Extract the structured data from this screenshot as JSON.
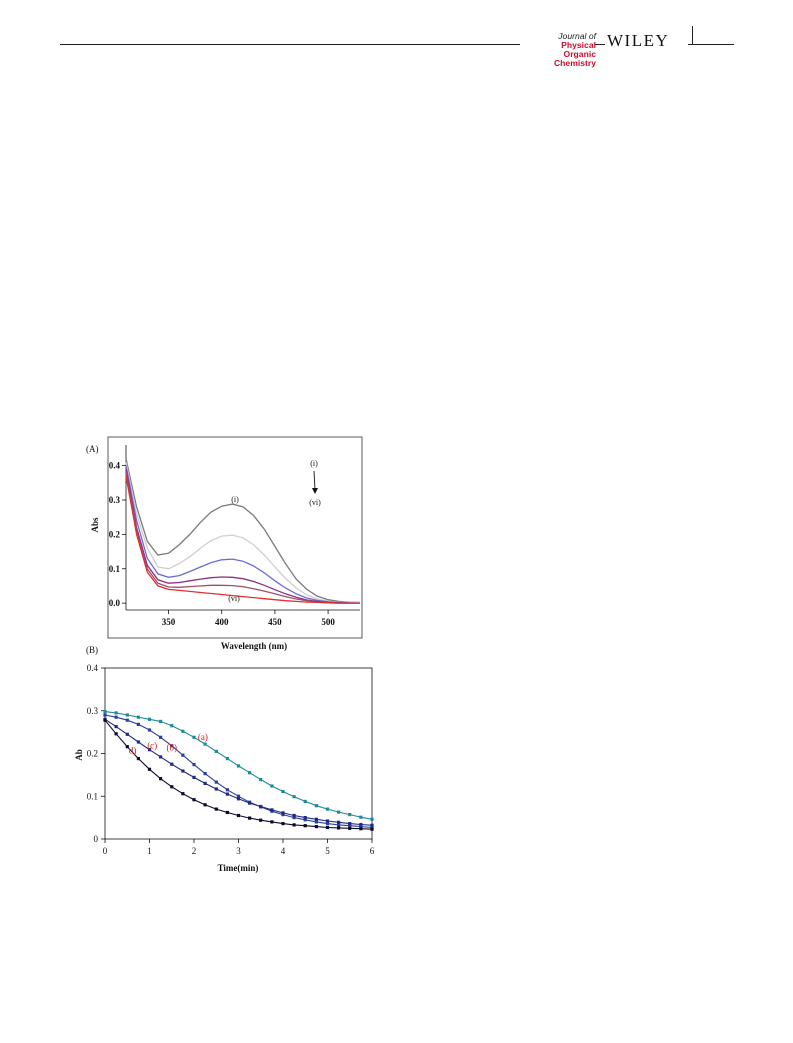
{
  "header": {
    "journal_line1_prefix": "Journal of",
    "journal_line1_emph": "Physical",
    "journal_line2": "Organic Chemistry",
    "publisher": "WILEY"
  },
  "figure": {
    "panel_a_label": "(A)",
    "panel_b_label": "(B)"
  },
  "chart_data": [
    {
      "type": "line",
      "panel": "(A)",
      "xlabel": "Wavelength (nm)",
      "ylabel": "Abs",
      "xlim": [
        310,
        530
      ],
      "ylim": [
        -0.02,
        0.46
      ],
      "xticks": [
        "350",
        "400",
        "450",
        "500"
      ],
      "yticks": [
        "0.0",
        "0.1",
        "0.2",
        "0.3",
        "0.4"
      ],
      "annotations": {
        "first_curve": "(i)",
        "last_curve": "(vi)",
        "legend_top": "(i)",
        "legend_bottom": "(vi)"
      },
      "x": [
        310,
        320,
        330,
        340,
        350,
        360,
        370,
        380,
        390,
        400,
        410,
        420,
        430,
        440,
        450,
        460,
        470,
        480,
        490,
        500,
        510,
        520,
        530
      ],
      "series": [
        {
          "name": "(i)",
          "color": "#7a7a7a",
          "values": [
            0.42,
            0.28,
            0.18,
            0.14,
            0.145,
            0.17,
            0.2,
            0.235,
            0.265,
            0.282,
            0.288,
            0.28,
            0.255,
            0.215,
            0.165,
            0.115,
            0.07,
            0.04,
            0.02,
            0.01,
            0.005,
            0.003,
            0.002
          ]
        },
        {
          "name": "",
          "color": "#cfcfcf",
          "values": [
            0.41,
            0.26,
            0.16,
            0.105,
            0.1,
            0.115,
            0.135,
            0.16,
            0.182,
            0.195,
            0.198,
            0.19,
            0.17,
            0.14,
            0.105,
            0.072,
            0.044,
            0.024,
            0.012,
            0.006,
            0.003,
            0.002,
            0.001
          ]
        },
        {
          "name": "",
          "color": "#6b6bd6",
          "values": [
            0.4,
            0.24,
            0.13,
            0.085,
            0.075,
            0.08,
            0.092,
            0.105,
            0.118,
            0.126,
            0.128,
            0.122,
            0.108,
            0.088,
            0.065,
            0.044,
            0.027,
            0.015,
            0.008,
            0.004,
            0.002,
            0.001,
            0.0
          ]
        },
        {
          "name": "",
          "color": "#8a2f8a",
          "values": [
            0.39,
            0.22,
            0.11,
            0.068,
            0.058,
            0.06,
            0.065,
            0.07,
            0.074,
            0.076,
            0.075,
            0.071,
            0.063,
            0.052,
            0.039,
            0.027,
            0.017,
            0.009,
            0.005,
            0.002,
            0.001,
            0.0,
            0.0
          ]
        },
        {
          "name": "",
          "color": "#a04f6a",
          "values": [
            0.38,
            0.21,
            0.1,
            0.058,
            0.047,
            0.046,
            0.048,
            0.05,
            0.052,
            0.052,
            0.051,
            0.048,
            0.042,
            0.035,
            0.027,
            0.019,
            0.012,
            0.007,
            0.003,
            0.001,
            0.0,
            0.0,
            0.0
          ]
        },
        {
          "name": "(vi)",
          "color": "#e0302e",
          "values": [
            0.37,
            0.2,
            0.09,
            0.05,
            0.04,
            0.037,
            0.034,
            0.031,
            0.028,
            0.025,
            0.022,
            0.019,
            0.016,
            0.013,
            0.01,
            0.007,
            0.005,
            0.003,
            0.002,
            0.001,
            0.0,
            0.0,
            0.0
          ]
        }
      ]
    },
    {
      "type": "line",
      "panel": "(B)",
      "xlabel": "Time(min)",
      "ylabel": "Ab",
      "xlim": [
        0,
        6
      ],
      "ylim": [
        0,
        0.4
      ],
      "xticks": [
        "0",
        "1",
        "2",
        "3",
        "4",
        "5",
        "6"
      ],
      "yticks": [
        "0",
        "0.1",
        "0.2",
        "0.3",
        "0.4"
      ],
      "x": [
        0,
        0.25,
        0.5,
        0.75,
        1,
        1.25,
        1.5,
        1.75,
        2,
        2.25,
        2.5,
        2.75,
        3,
        3.25,
        3.5,
        3.75,
        4,
        4.25,
        4.5,
        4.75,
        5,
        5.25,
        5.5,
        5.75,
        6
      ],
      "series": [
        {
          "name": "(a)",
          "label": "(a)",
          "color": "#1f8a9a",
          "values": [
            0.298,
            0.295,
            0.29,
            0.285,
            0.28,
            0.275,
            0.265,
            0.252,
            0.238,
            0.222,
            0.205,
            0.188,
            0.171,
            0.155,
            0.139,
            0.124,
            0.111,
            0.099,
            0.088,
            0.078,
            0.07,
            0.063,
            0.057,
            0.051,
            0.046
          ]
        },
        {
          "name": "(b)",
          "label": "(b)",
          "color": "#2a3fa0",
          "values": [
            0.29,
            0.285,
            0.278,
            0.268,
            0.255,
            0.238,
            0.218,
            0.196,
            0.174,
            0.153,
            0.133,
            0.115,
            0.1,
            0.086,
            0.075,
            0.065,
            0.057,
            0.05,
            0.045,
            0.04,
            0.036,
            0.033,
            0.031,
            0.029,
            0.027
          ]
        },
        {
          "name": "(c)",
          "label": "(c)",
          "color": "#1f2a80",
          "values": [
            0.28,
            0.263,
            0.245,
            0.227,
            0.209,
            0.192,
            0.175,
            0.159,
            0.144,
            0.13,
            0.117,
            0.105,
            0.094,
            0.084,
            0.076,
            0.068,
            0.061,
            0.055,
            0.05,
            0.046,
            0.042,
            0.039,
            0.036,
            0.034,
            0.032
          ]
        },
        {
          "name": "(d)",
          "label": "d)",
          "color": "#0a0a2a",
          "values": [
            0.278,
            0.246,
            0.216,
            0.188,
            0.163,
            0.141,
            0.122,
            0.106,
            0.092,
            0.08,
            0.07,
            0.062,
            0.055,
            0.049,
            0.044,
            0.04,
            0.036,
            0.033,
            0.031,
            0.029,
            0.027,
            0.026,
            0.025,
            0.024,
            0.023
          ]
        }
      ]
    }
  ]
}
